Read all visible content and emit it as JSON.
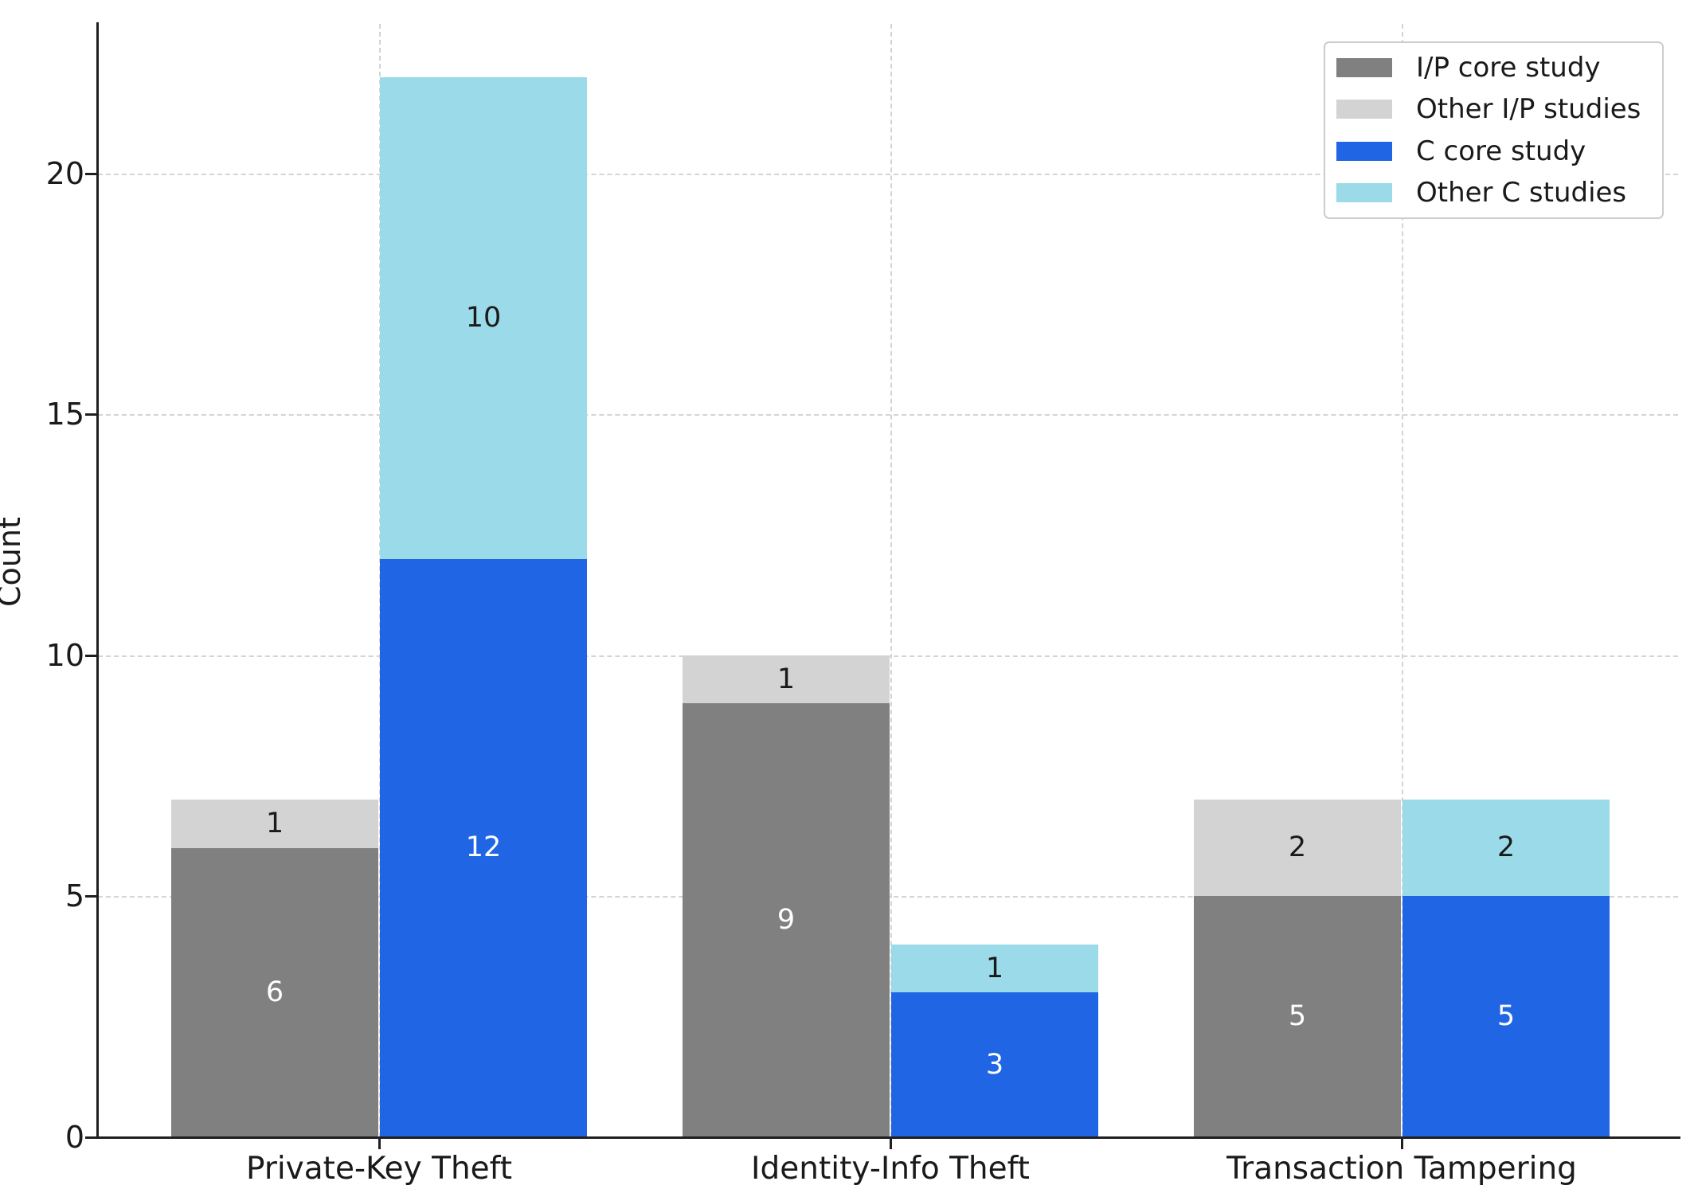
{
  "chart_data": {
    "type": "bar",
    "stacked": true,
    "grouped": true,
    "orientation": "vertical",
    "title": "",
    "xlabel": "",
    "ylabel": "Count",
    "categories": [
      "Private-Key Theft",
      "Identity-Info Theft",
      "Transaction Tampering"
    ],
    "series": [
      {
        "name": "I/P core study",
        "bar": 0,
        "stack_order": 0,
        "color": "#808080",
        "label_color": "#ffffff",
        "values": [
          6,
          9,
          5
        ]
      },
      {
        "name": "Other I/P studies",
        "bar": 0,
        "stack_order": 1,
        "color": "#d3d3d3",
        "label_color": "#1a1a1a",
        "values": [
          1,
          1,
          2
        ]
      },
      {
        "name": "C core study",
        "bar": 1,
        "stack_order": 0,
        "color": "#2065e3",
        "label_color": "#ffffff",
        "values": [
          12,
          3,
          5
        ]
      },
      {
        "name": "Other C studies",
        "bar": 1,
        "stack_order": 1,
        "color": "#9bdae8",
        "label_color": "#1a1a1a",
        "values": [
          10,
          1,
          2
        ]
      }
    ],
    "value_labels_shown": true,
    "yticks": [
      0,
      5,
      10,
      15,
      20
    ],
    "ylim": [
      0,
      23.1
    ],
    "grid": {
      "horizontal": true,
      "vertical": true,
      "style": "dashed",
      "color": "#d4d4d4"
    },
    "legend": {
      "position": "upper right",
      "entries": [
        "I/P core study",
        "Other I/P studies",
        "C core study",
        "Other C studies"
      ]
    }
  },
  "colors": {
    "background": "#ffffff",
    "axis": "#1f1f1f",
    "text": "#1a1a1a",
    "grid": "#d4d4d4",
    "legend_border": "#cccccc"
  }
}
